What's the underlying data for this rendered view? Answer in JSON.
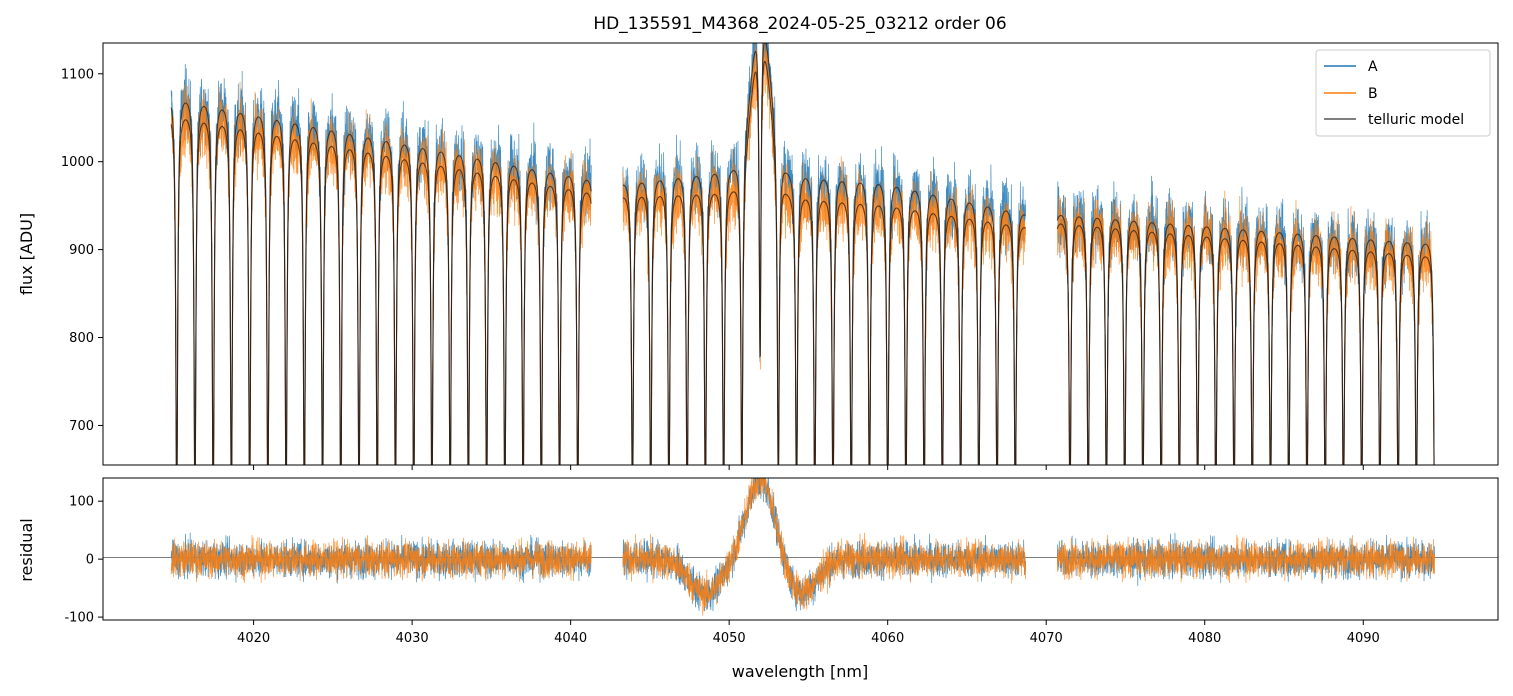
{
  "chart_data": [
    {
      "type": "line",
      "panel": "main",
      "title": "HD_135591_M4368_2024-05-25_03212  order 06",
      "xlabel": "",
      "ylabel": "flux [ADU]",
      "xlim": [
        4010.5,
        4098.5
      ],
      "ylim": [
        655,
        1135
      ],
      "yticks": [
        700,
        800,
        900,
        1000,
        1100
      ],
      "xticks": [
        4020,
        4030,
        4040,
        4050,
        4060,
        4070,
        4080,
        4090
      ],
      "legend_position": "top-right",
      "series": [
        {
          "name": "A",
          "color": "#1f77b4"
        },
        {
          "name": "B",
          "color": "#ff7f0e"
        },
        {
          "name": "telluric model",
          "color": "#555555"
        }
      ],
      "segments": [
        [
          4014.8,
          4041.3
        ],
        [
          4043.3,
          4068.7
        ],
        [
          4070.7,
          4094.5
        ]
      ],
      "continuum_A": [
        [
          4014.8,
          1085
        ],
        [
          4041.3,
          990
        ],
        [
          4043.3,
          985
        ],
        [
          4050,
          1000
        ],
        [
          4060,
          985
        ],
        [
          4068.7,
          950
        ],
        [
          4070.7,
          950
        ],
        [
          4094.5,
          915
        ]
      ],
      "continuum_B": [
        [
          4014.8,
          1065
        ],
        [
          4041.3,
          975
        ],
        [
          4043.3,
          970
        ],
        [
          4050,
          975
        ],
        [
          4060,
          960
        ],
        [
          4068.7,
          935
        ],
        [
          4070.7,
          940
        ],
        [
          4094.5,
          900
        ]
      ],
      "line_depth_min": 655,
      "emission_feature": {
        "center": 4052,
        "peak": 1140
      }
    },
    {
      "type": "line",
      "panel": "residual",
      "xlabel": "wavelength [nm]",
      "ylabel": "residual",
      "xlim": [
        4010.5,
        4098.5
      ],
      "ylim": [
        -105,
        140
      ],
      "yticks": [
        -100,
        0,
        100
      ],
      "xticks": [
        4020,
        4030,
        4040,
        4050,
        4060,
        4070,
        4080,
        4090
      ],
      "reference_line": 0,
      "noise_amplitude": 40,
      "features": [
        {
          "type": "dip",
          "center": 4048.5,
          "depth": -60
        },
        {
          "type": "peak",
          "center": 4052,
          "height": 140
        },
        {
          "type": "dip",
          "center": 4054.5,
          "depth": -60
        }
      ]
    }
  ],
  "legend": {
    "items": [
      {
        "label": "A",
        "color": "#1f77b4"
      },
      {
        "label": "B",
        "color": "#ff7f0e"
      },
      {
        "label": "telluric model",
        "color": "#555555"
      }
    ]
  }
}
